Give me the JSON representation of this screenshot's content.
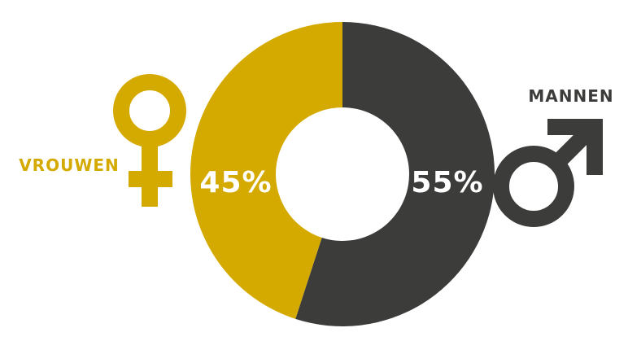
{
  "chart_data": {
    "type": "pie",
    "categories": [
      "VROUWEN",
      "MANNEN"
    ],
    "values": [
      45,
      55
    ],
    "value_labels": [
      "45%",
      "55%"
    ],
    "colors": [
      "#D4AA00",
      "#3C3C3B"
    ],
    "icons": [
      "female-symbol-icon",
      "male-symbol-icon"
    ]
  },
  "colors": {
    "background": "#FFFFFF",
    "female": "#D4AA00",
    "male": "#3C3C3B"
  }
}
